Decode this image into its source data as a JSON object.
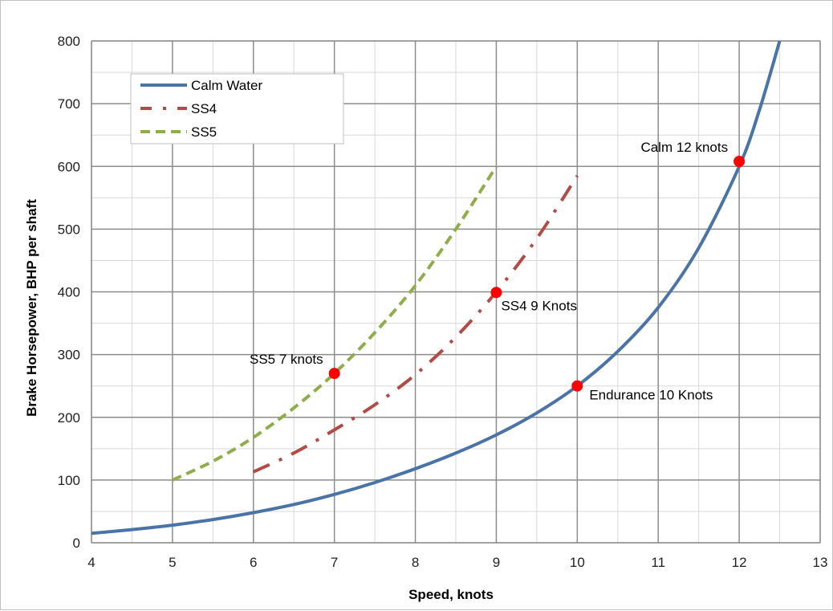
{
  "chart_data": {
    "type": "line",
    "xlabel": "Speed, knots",
    "ylabel": "Brake Horsepower, BHP per shaft",
    "xlim": [
      4,
      13
    ],
    "ylim": [
      0,
      800
    ],
    "x_ticks": [
      4,
      5,
      6,
      7,
      8,
      9,
      10,
      11,
      12,
      13
    ],
    "y_ticks": [
      0,
      100,
      200,
      300,
      400,
      500,
      600,
      700,
      800
    ],
    "x_minor_step": 0.5,
    "y_minor_step": 50,
    "grid": true,
    "legend_position": "top-left",
    "series": [
      {
        "name": "Calm Water",
        "color": "#4a74a8",
        "style": "solid",
        "points": [
          [
            4,
            15
          ],
          [
            4.5,
            21
          ],
          [
            5,
            28
          ],
          [
            5.5,
            37
          ],
          [
            6,
            48
          ],
          [
            6.5,
            61
          ],
          [
            7,
            77
          ],
          [
            7.5,
            96
          ],
          [
            8,
            118
          ],
          [
            8.5,
            143
          ],
          [
            9,
            172
          ],
          [
            9.5,
            207
          ],
          [
            10,
            250
          ],
          [
            10.5,
            305
          ],
          [
            11,
            375
          ],
          [
            11.5,
            470
          ],
          [
            12,
            600
          ],
          [
            12.25,
            690
          ],
          [
            12.5,
            800
          ]
        ]
      },
      {
        "name": "SS4",
        "color": "#b34a45",
        "style": "dash-dot",
        "points": [
          [
            6,
            113
          ],
          [
            6.5,
            143
          ],
          [
            7,
            180
          ],
          [
            7.5,
            220
          ],
          [
            8,
            268
          ],
          [
            8.5,
            328
          ],
          [
            9,
            400
          ],
          [
            9.5,
            485
          ],
          [
            10,
            585
          ]
        ]
      },
      {
        "name": "SS5",
        "color": "#8fae4b",
        "style": "dashed",
        "points": [
          [
            5,
            100
          ],
          [
            5.5,
            130
          ],
          [
            6,
            168
          ],
          [
            6.5,
            215
          ],
          [
            7,
            270
          ],
          [
            7.5,
            335
          ],
          [
            8,
            410
          ],
          [
            8.5,
            500
          ],
          [
            9,
            600
          ]
        ]
      }
    ],
    "annotations": [
      {
        "label": "Calm 12 knots",
        "x": 12,
        "y": 608,
        "anchor": "upper-left"
      },
      {
        "label": "SS4 9 Knots",
        "x": 9,
        "y": 399,
        "anchor": "lower-right"
      },
      {
        "label": "SS5 7 knots",
        "x": 7,
        "y": 270,
        "anchor": "upper-left"
      },
      {
        "label": "Endurance 10 Knots",
        "x": 10,
        "y": 250,
        "anchor": "right"
      }
    ],
    "marker_color": "#ff0000"
  }
}
